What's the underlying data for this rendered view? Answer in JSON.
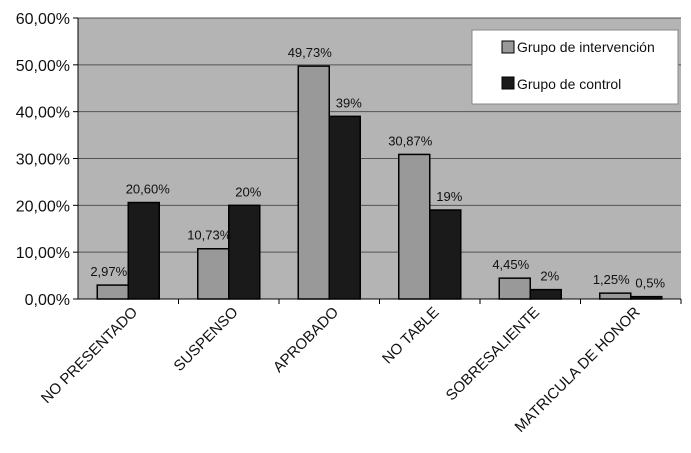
{
  "chart_data": {
    "type": "bar",
    "title": "",
    "xlabel": "",
    "ylabel": "",
    "ylim": [
      0,
      60
    ],
    "yticks": [
      "0,00%",
      "10,00%",
      "20,00%",
      "30,00%",
      "40,00%",
      "50,00%",
      "60,00%"
    ],
    "grid": true,
    "legend_position": "top-right",
    "categories": [
      "NO PRESENTADO",
      "SUSPENSO",
      "APROBADO",
      "NOTABLE",
      "SOBRESALIENTE",
      "MATRICULA DE HONOR"
    ],
    "tick_labels": [
      "NO PRESENTADO",
      "SUSPENSO",
      "APROBADO",
      "NO TABLE",
      "SOBRESALIENTE",
      "MATRICULA DE HONOR"
    ],
    "series": [
      {
        "name": "Grupo de intervención",
        "color": "#999999",
        "values": [
          2.97,
          10.73,
          49.73,
          30.87,
          4.45,
          1.25
        ],
        "labels": [
          "2,97%",
          "10,73%",
          "49,73%",
          "30,87%",
          "4,45%",
          "1,25%"
        ]
      },
      {
        "name": "Grupo de control",
        "color": "#1a1a1a",
        "values": [
          20.6,
          20,
          39,
          19,
          2,
          0.5
        ],
        "labels": [
          "20,60%",
          "20%",
          "39%",
          "19%",
          "2%",
          "0,5%"
        ]
      }
    ]
  },
  "colors": {
    "plot_background": "#b4b4b4",
    "gridline": "#555555"
  }
}
